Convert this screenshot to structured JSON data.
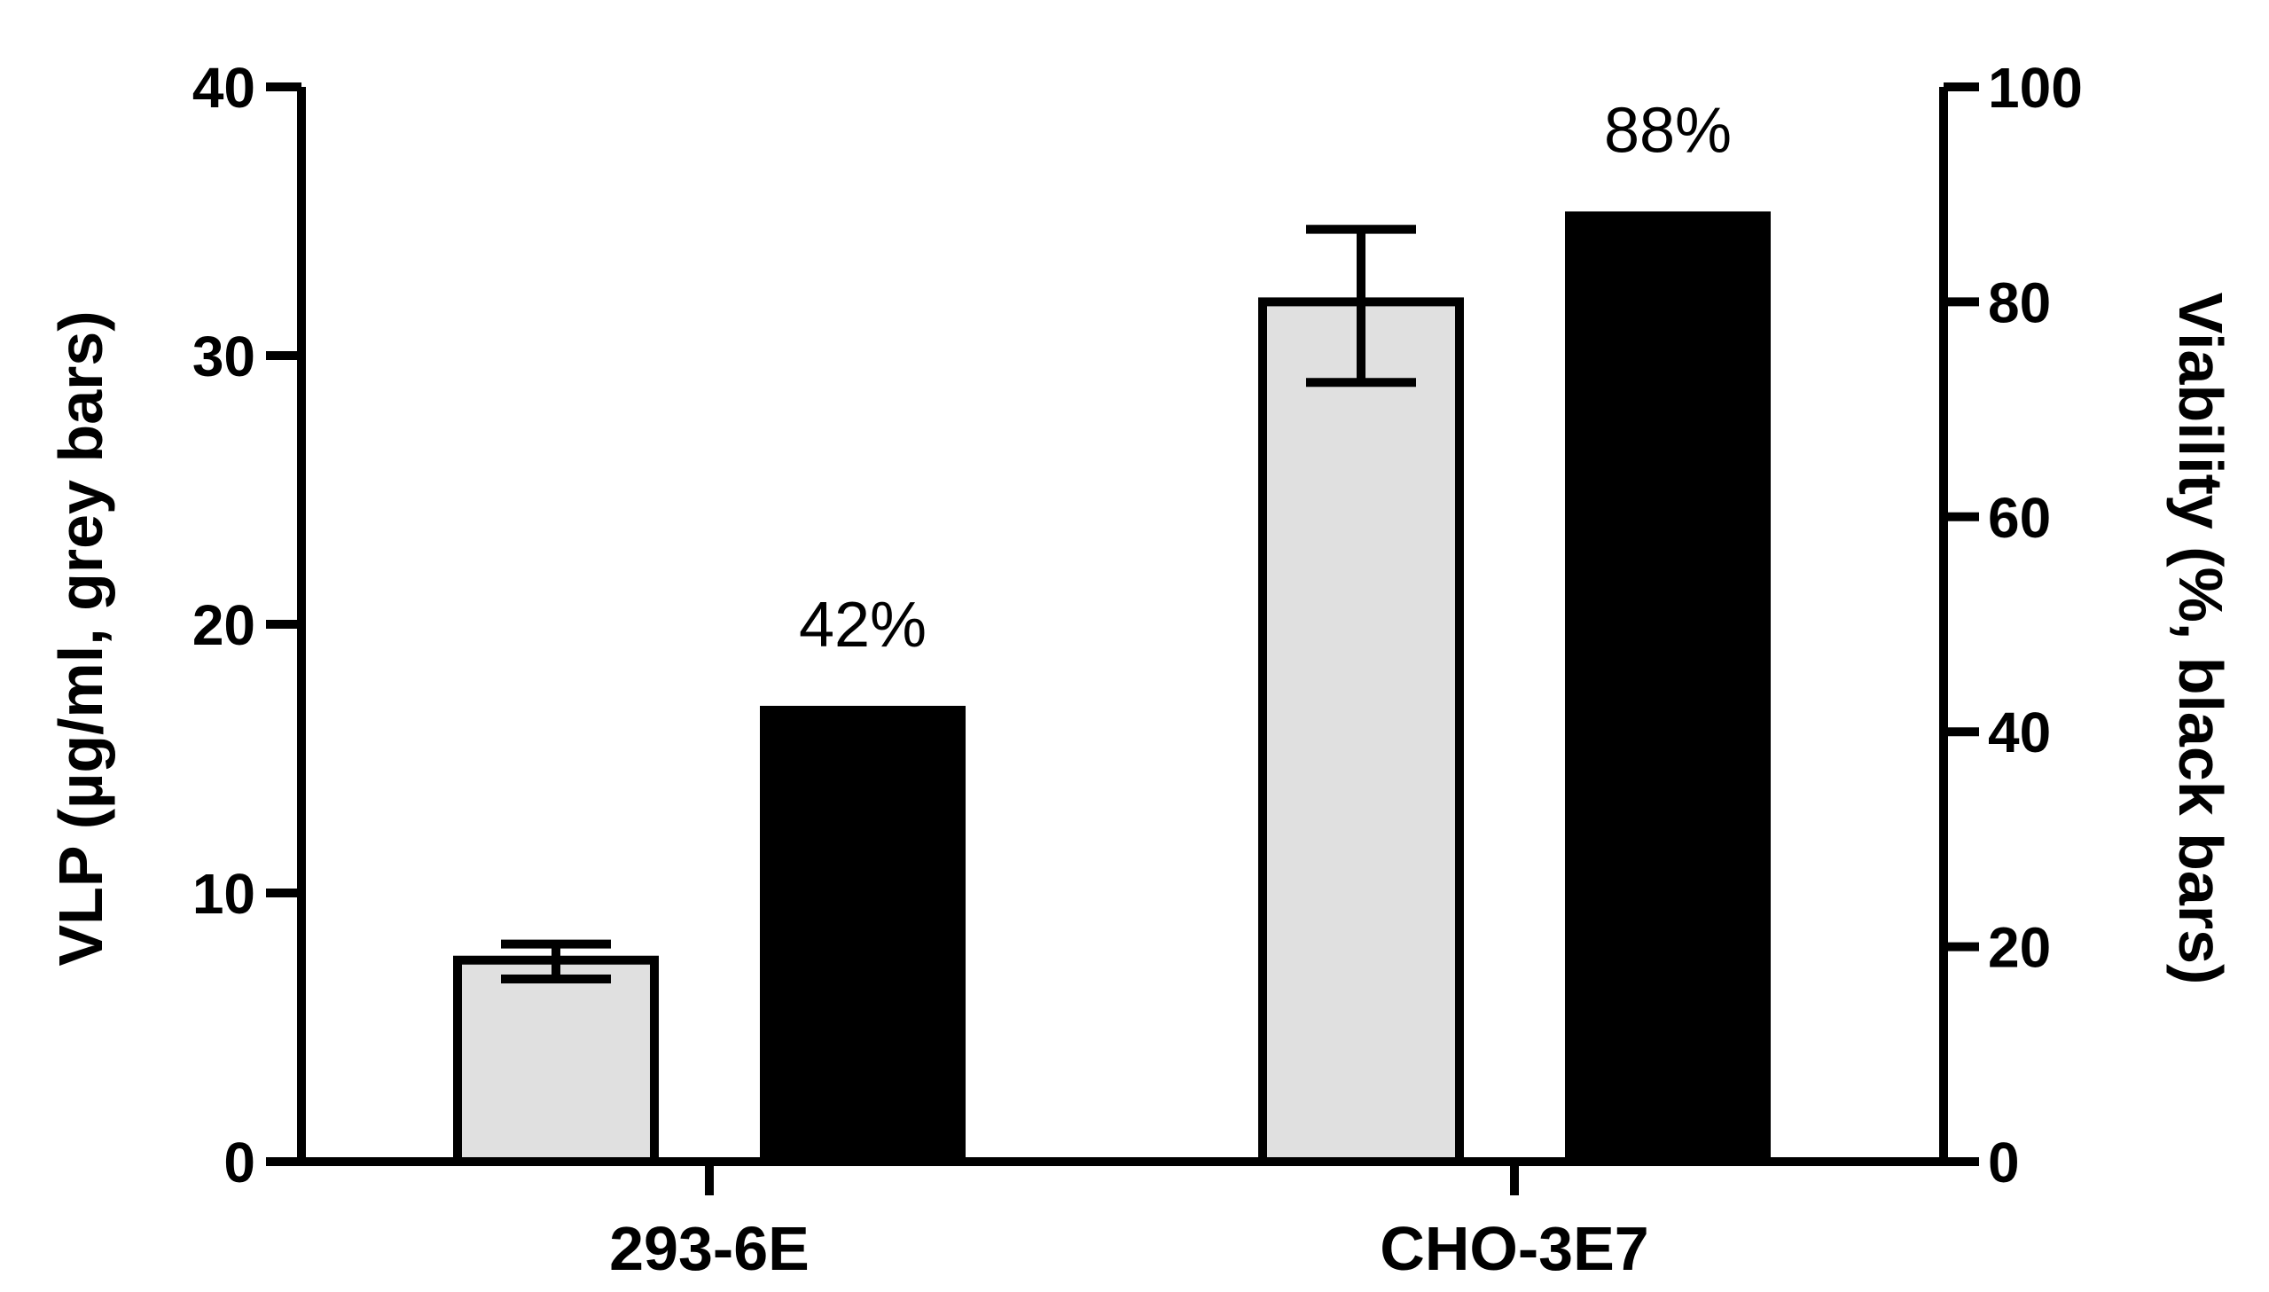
{
  "chart_data": {
    "type": "bar",
    "categories": [
      "293-6E",
      "CHO-3E7"
    ],
    "series": [
      {
        "axis": "left",
        "values": [
          7.5,
          32.0
        ],
        "error": [
          [
            6.8,
            8.1
          ],
          [
            29.0,
            34.7
          ]
        ],
        "color": "#e0e0e0",
        "border": "#000000"
      },
      {
        "axis": "right",
        "values": [
          42,
          88
        ],
        "color": "#000000",
        "data_labels": [
          "42%",
          "88%"
        ]
      }
    ],
    "ylabel_left": "VLP (µg/ml, grey bars)",
    "ylabel_right": "Viability (%, black bars)",
    "ylim_left": [
      0,
      40
    ],
    "ylim_right": [
      0,
      100
    ],
    "yticks_left": [
      "0",
      "10",
      "20",
      "30",
      "40"
    ],
    "yticks_right": [
      "0",
      "20",
      "40",
      "60",
      "80",
      "100"
    ],
    "grid": false,
    "legend": "none"
  }
}
